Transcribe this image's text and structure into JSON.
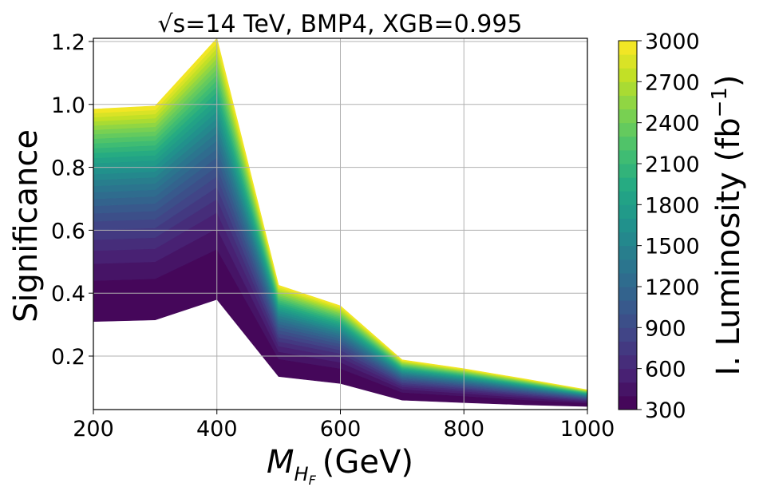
{
  "chart_data": {
    "type": "area",
    "title_prefix": "√s",
    "title_suffix": "=14 TeV, BMP4, XGB=0.995",
    "xlabel_math": "M",
    "xlabel_sub": "H",
    "xlabel_subsub": "F",
    "xlabel_unit": "(GeV)",
    "ylabel": "Significance",
    "xlim": [
      200,
      1000
    ],
    "ylim": [
      0.03,
      1.21
    ],
    "xticks": [
      200,
      400,
      600,
      800,
      1000
    ],
    "yticks": [
      0.2,
      0.4,
      0.6,
      0.8,
      1.0,
      1.2
    ],
    "ytick_labels": [
      "0.2",
      "0.4",
      "0.6",
      "0.8",
      "1.0",
      "1.2"
    ],
    "grid": true,
    "x": [
      200,
      300,
      400,
      500,
      600,
      700,
      800,
      900,
      1000
    ],
    "significance_at_300_fb": [
      0.31,
      0.315,
      0.38,
      0.135,
      0.113,
      0.06,
      0.052,
      0.045,
      0.04
    ],
    "significance_at_3000_fb": [
      0.985,
      0.995,
      1.21,
      0.425,
      0.36,
      0.188,
      0.16,
      0.127,
      0.093
    ],
    "colorbar": {
      "label": "I. Luminosity (fb",
      "label_sup": "−1",
      "label_close": ")",
      "min": 300,
      "max": 3000,
      "levels": 27,
      "ticks": [
        300,
        600,
        900,
        1200,
        1500,
        1800,
        2100,
        2400,
        2700,
        3000
      ],
      "colormap": "viridis"
    }
  }
}
